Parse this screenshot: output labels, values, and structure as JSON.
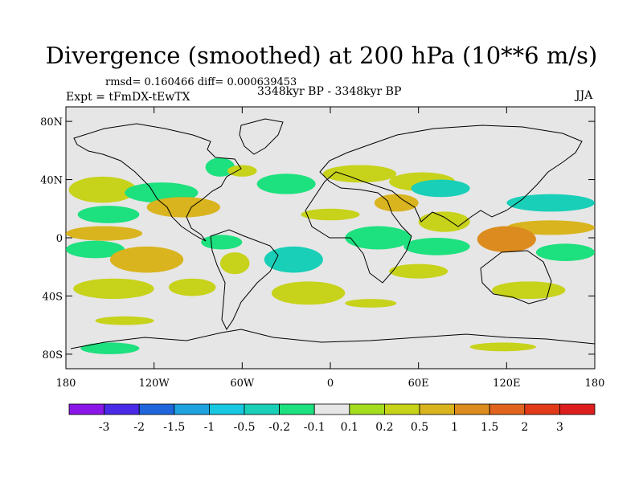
{
  "chart_data": {
    "type": "heatmap",
    "title": "Divergence (smoothed) at 200 hPa (10**6 m/s)",
    "stats": "rmsd= 0.160466 diff= 0.000639453",
    "experiment": "Expt = tFmDX-tEwTX",
    "period": "3348kyr BP - 3348kyr BP",
    "season": "JJA",
    "x_ticks": [
      "180",
      "120W",
      "60W",
      "0",
      "60E",
      "120E",
      "180"
    ],
    "x_tick_values": [
      -180,
      -120,
      -60,
      0,
      60,
      120,
      180
    ],
    "y_ticks": [
      "80N",
      "40N",
      "0",
      "40S",
      "80S"
    ],
    "y_tick_values": [
      80,
      40,
      0,
      -40,
      -80
    ],
    "xlim": [
      -180,
      180
    ],
    "ylim": [
      -90,
      90
    ],
    "colorbar": {
      "labels": [
        "-3",
        "-2",
        "-1.5",
        "-1",
        "-0.5",
        "-0.2",
        "-0.1",
        "0.1",
        "0.2",
        "0.5",
        "1",
        "1.5",
        "2",
        "3"
      ],
      "colors": [
        "#8a16e8",
        "#4a2ae6",
        "#1f66dc",
        "#1ea3e0",
        "#18c7e0",
        "#19cfb7",
        "#1de07e",
        "#e6e6e6",
        "#a4dc1e",
        "#c7d21a",
        "#d9b41e",
        "#dc8c1e",
        "#e0641e",
        "#e03a18",
        "#dd1e1e"
      ]
    },
    "regions": [
      {
        "lon": [
          -178,
          -132
        ],
        "lat": [
          42,
          24
        ],
        "value": 0.2
      },
      {
        "lon": [
          -172,
          -130
        ],
        "lat": [
          22,
          10
        ],
        "value": -0.2
      },
      {
        "lon": [
          -180,
          -128
        ],
        "lat": [
          8,
          -2
        ],
        "value": 0.5
      },
      {
        "lon": [
          -180,
          -140
        ],
        "lat": [
          -2,
          -14
        ],
        "value": -0.2
      },
      {
        "lon": [
          -150,
          -100
        ],
        "lat": [
          -6,
          -24
        ],
        "value": 0.5
      },
      {
        "lon": [
          -175,
          -120
        ],
        "lat": [
          -28,
          -42
        ],
        "value": 0.2
      },
      {
        "lon": [
          -140,
          -90
        ],
        "lat": [
          38,
          24
        ],
        "value": -0.2
      },
      {
        "lon": [
          -125,
          -75
        ],
        "lat": [
          28,
          14
        ],
        "value": 0.5
      },
      {
        "lon": [
          -110,
          -78
        ],
        "lat": [
          -28,
          -40
        ],
        "value": 0.2
      },
      {
        "lon": [
          -85,
          -65
        ],
        "lat": [
          55,
          42
        ],
        "value": -0.2
      },
      {
        "lon": [
          -70,
          -50
        ],
        "lat": [
          50,
          42
        ],
        "value": 0.2
      },
      {
        "lon": [
          -88,
          -60
        ],
        "lat": [
          2,
          -8
        ],
        "value": -0.2
      },
      {
        "lon": [
          -75,
          -55
        ],
        "lat": [
          -10,
          -25
        ],
        "value": 0.2
      },
      {
        "lon": [
          -50,
          -10
        ],
        "lat": [
          44,
          30
        ],
        "value": -0.2
      },
      {
        "lon": [
          -45,
          -5
        ],
        "lat": [
          -6,
          -24
        ],
        "value": -0.5
      },
      {
        "lon": [
          -40,
          10
        ],
        "lat": [
          -30,
          -46
        ],
        "value": 0.2
      },
      {
        "lon": [
          -160,
          -120
        ],
        "lat": [
          -54,
          -60
        ],
        "value": 0.2
      },
      {
        "lon": [
          -20,
          20
        ],
        "lat": [
          20,
          12
        ],
        "value": 0.2
      },
      {
        "lon": [
          -5,
          45
        ],
        "lat": [
          50,
          38
        ],
        "value": 0.2
      },
      {
        "lon": [
          10,
          55
        ],
        "lat": [
          8,
          -8
        ],
        "value": -0.2
      },
      {
        "lon": [
          30,
          60
        ],
        "lat": [
          30,
          18
        ],
        "value": 0.5
      },
      {
        "lon": [
          40,
          85
        ],
        "lat": [
          45,
          32
        ],
        "value": 0.2
      },
      {
        "lon": [
          55,
          95
        ],
        "lat": [
          40,
          28
        ],
        "value": -0.5
      },
      {
        "lon": [
          60,
          95
        ],
        "lat": [
          18,
          4
        ],
        "value": 0.2
      },
      {
        "lon": [
          50,
          95
        ],
        "lat": [
          0,
          -12
        ],
        "value": -0.2
      },
      {
        "lon": [
          40,
          80
        ],
        "lat": [
          -18,
          -28
        ],
        "value": 0.2
      },
      {
        "lon": [
          10,
          45
        ],
        "lat": [
          -42,
          -48
        ],
        "value": 0.2
      },
      {
        "lon": [
          120,
          180
        ],
        "lat": [
          30,
          18
        ],
        "value": -0.5
      },
      {
        "lon": [
          120,
          180
        ],
        "lat": [
          12,
          2
        ],
        "value": 0.5
      },
      {
        "lon": [
          100,
          140
        ],
        "lat": [
          8,
          -10
        ],
        "value": 1.0
      },
      {
        "lon": [
          140,
          180
        ],
        "lat": [
          -4,
          -16
        ],
        "value": -0.2
      },
      {
        "lon": [
          110,
          160
        ],
        "lat": [
          -30,
          -42
        ],
        "value": 0.2
      },
      {
        "lon": [
          -170,
          -130
        ],
        "lat": [
          -72,
          -80
        ],
        "value": -0.2
      },
      {
        "lon": [
          95,
          140
        ],
        "lat": [
          -72,
          -78
        ],
        "value": 0.2
      }
    ]
  }
}
